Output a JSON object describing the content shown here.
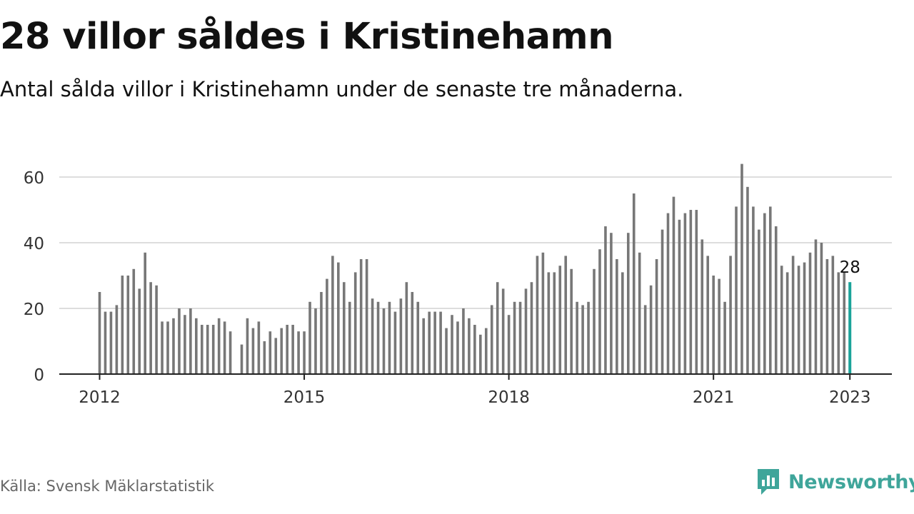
{
  "header": {
    "title": "28 villor såldes i Kristinehamn",
    "subtitle": "Antal sålda villor i Kristinehamn under de senaste tre månaderna."
  },
  "footer": {
    "source": "Källa: Svensk Mäklarstatistik",
    "brand": "Newsworthy",
    "brand_icon": "newsworthy-logo-icon"
  },
  "colors": {
    "bar": "#777777",
    "highlight": "#1aa39a",
    "grid": "#dddddd",
    "axis": "#222222",
    "brand": "#3fa59a"
  },
  "chart_data": {
    "type": "bar",
    "title": "28 villor såldes i Kristinehamn",
    "subtitle": "Antal sålda villor i Kristinehamn under de senaste tre månaderna.",
    "xlabel": "",
    "ylabel": "",
    "x_ticks": [
      "2012",
      "2015",
      "2018",
      "2021",
      "2023"
    ],
    "y_ticks": [
      0,
      20,
      40,
      60
    ],
    "ylim": [
      0,
      70
    ],
    "grid": true,
    "start": "2012-01",
    "end": "2023-01",
    "highlight_label": "28",
    "values": [
      25,
      19,
      19,
      21,
      30,
      30,
      32,
      26,
      37,
      28,
      27,
      16,
      16,
      17,
      20,
      18,
      20,
      17,
      15,
      15,
      15,
      17,
      16,
      13,
      null,
      9,
      17,
      14,
      16,
      10,
      13,
      11,
      14,
      15,
      15,
      13,
      13,
      22,
      20,
      25,
      29,
      36,
      34,
      28,
      22,
      31,
      35,
      35,
      23,
      22,
      20,
      22,
      19,
      23,
      28,
      25,
      22,
      17,
      19,
      19,
      19,
      14,
      18,
      16,
      20,
      17,
      15,
      12,
      14,
      21,
      28,
      26,
      18,
      22,
      22,
      26,
      28,
      36,
      37,
      31,
      31,
      33,
      36,
      32,
      22,
      21,
      22,
      32,
      38,
      45,
      43,
      35,
      31,
      43,
      55,
      37,
      21,
      27,
      35,
      44,
      49,
      54,
      47,
      49,
      50,
      50,
      41,
      36,
      30,
      29,
      22,
      36,
      51,
      64,
      57,
      51,
      44,
      49,
      51,
      45,
      33,
      31,
      36,
      33,
      34,
      37,
      41,
      40,
      35,
      36,
      31,
      31,
      28
    ]
  }
}
